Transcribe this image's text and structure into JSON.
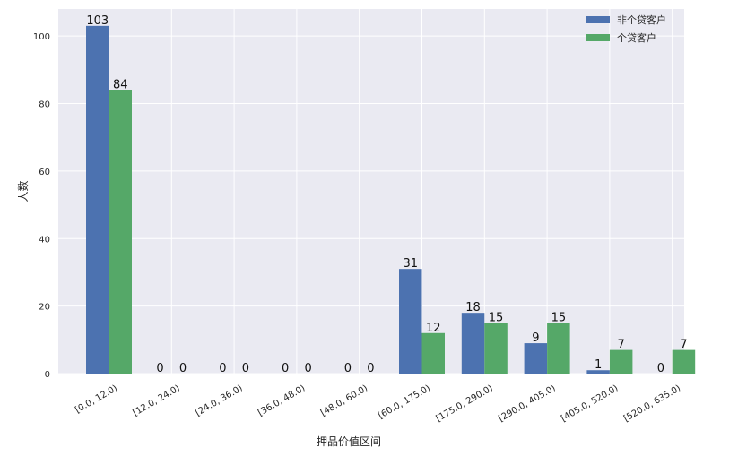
{
  "chart_data": {
    "type": "bar",
    "title": "",
    "xlabel": "押品价值区间",
    "ylabel": "人数",
    "categories": [
      "[0.0, 12.0)",
      "[12.0, 24.0)",
      "[24.0, 36.0)",
      "[36.0, 48.0)",
      "[48.0, 60.0)",
      "[60.0, 175.0)",
      "[175.0, 290.0)",
      "[290.0, 405.0)",
      "[405.0, 520.0)",
      "[520.0, 635.0)"
    ],
    "series": [
      {
        "name": "非个贷客户",
        "color": "#4C72B0",
        "values": [
          103,
          0,
          0,
          0,
          0,
          31,
          18,
          9,
          1,
          0
        ]
      },
      {
        "name": "个贷客户",
        "color": "#55A868",
        "values": [
          84,
          0,
          0,
          0,
          0,
          12,
          15,
          15,
          7,
          7
        ]
      }
    ],
    "ylim": [
      0,
      108
    ],
    "yticks": [
      0,
      20,
      40,
      60,
      80,
      100
    ],
    "grid": true,
    "legend_position": "top-right",
    "background_color": "#EAEAF2",
    "grid_color": "#FFFFFF"
  }
}
